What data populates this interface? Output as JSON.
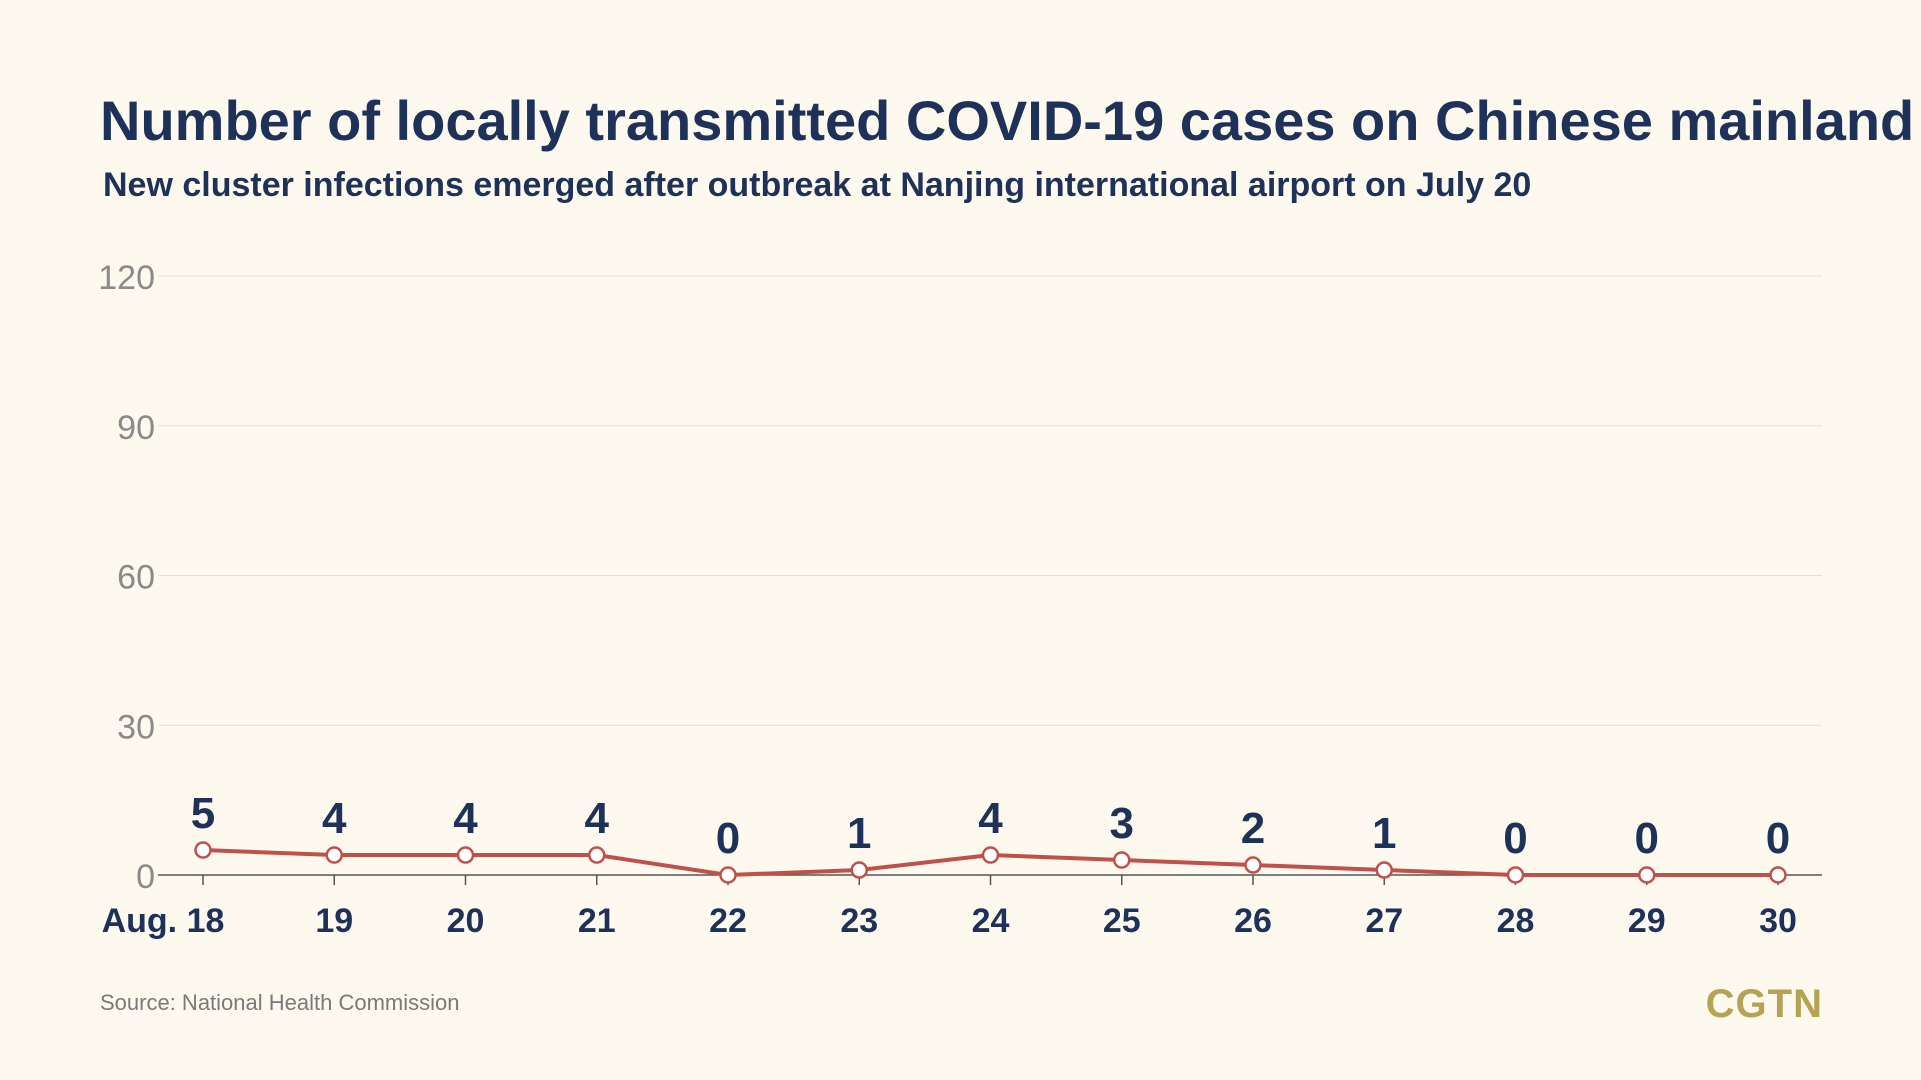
{
  "chart_data": {
    "type": "line",
    "title": "Number of locally transmitted COVID-19 cases on Chinese mainland",
    "subtitle": "New cluster infections emerged after outbreak at Nanjing international airport on July 20",
    "categories": [
      "Aug. 18",
      "19",
      "20",
      "21",
      "22",
      "23",
      "24",
      "25",
      "26",
      "27",
      "28",
      "29",
      "30"
    ],
    "series": [
      {
        "values": [
          5,
          4,
          4,
          4,
          0,
          1,
          4,
          3,
          2,
          1,
          0,
          0,
          0
        ]
      }
    ],
    "ylim": [
      0,
      120
    ],
    "yticks": [
      "0",
      "30",
      "60",
      "90",
      "120"
    ],
    "grid": true,
    "line_color": "#c0504a"
  },
  "source": "Source: National Health Commission",
  "logo": "CGTN"
}
